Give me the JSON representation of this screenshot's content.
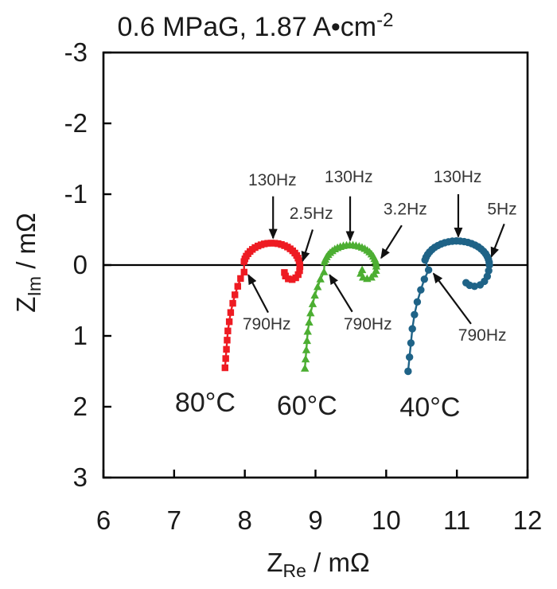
{
  "title": {
    "text": "0.6 MPaG, 1.87 A•cm",
    "sup": "-2"
  },
  "chart_data": {
    "type": "scatter",
    "title": "0.6 MPaG, 1.87 A•cm^-2",
    "xlabel": "Z_Re / mΩ",
    "ylabel": "Z_Im / mΩ",
    "xlim": [
      6,
      12
    ],
    "ylim": [
      -3,
      3
    ],
    "grid": false,
    "x_axis": {
      "label_main": "Z",
      "label_sub": "Re",
      "label_rest": " / mΩ",
      "min": 6,
      "max": 12,
      "ticks": [
        "6",
        "7",
        "8",
        "9",
        "10",
        "11",
        "12"
      ],
      "tick_values": [
        6,
        7,
        8,
        9,
        10,
        11,
        12
      ]
    },
    "y_axis": {
      "label_main": "Z",
      "label_sub": "Im",
      "label_rest": " / mΩ",
      "min": -3,
      "max": 3,
      "ticks": [
        "-3",
        "-2",
        "-1",
        "0",
        "1",
        "2",
        "3"
      ],
      "tick_values": [
        -3,
        -2,
        -1,
        0,
        1,
        2,
        3
      ],
      "negative_up": true
    },
    "zero_line_y": 0,
    "series": [
      {
        "name": "80°C",
        "marker": "square",
        "color": "#ee1b22",
        "points": [
          [
            7.72,
            1.45
          ],
          [
            7.73,
            1.32
          ],
          [
            7.74,
            1.19
          ],
          [
            7.75,
            1.06
          ],
          [
            7.76,
            0.93
          ],
          [
            7.78,
            0.8
          ],
          [
            7.8,
            0.67
          ],
          [
            7.83,
            0.54
          ],
          [
            7.86,
            0.42
          ],
          [
            7.9,
            0.3
          ],
          [
            7.94,
            0.19
          ],
          [
            7.99,
            0.1
          ],
          [
            7.989,
            -0.049
          ],
          [
            8.002,
            -0.087
          ],
          [
            8.02,
            -0.125
          ],
          [
            8.045,
            -0.16
          ],
          [
            8.074,
            -0.192
          ],
          [
            8.107,
            -0.221
          ],
          [
            8.145,
            -0.247
          ],
          [
            8.186,
            -0.269
          ],
          [
            8.23,
            -0.286
          ],
          [
            8.276,
            -0.299
          ],
          [
            8.324,
            -0.307
          ],
          [
            8.373,
            -0.31
          ],
          [
            8.422,
            -0.308
          ],
          [
            8.47,
            -0.302
          ],
          [
            8.517,
            -0.29
          ],
          [
            8.562,
            -0.274
          ],
          [
            8.604,
            -0.254
          ],
          [
            8.642,
            -0.229
          ],
          [
            8.677,
            -0.201
          ],
          [
            8.708,
            -0.169
          ],
          [
            8.733,
            -0.135
          ],
          [
            8.753,
            -0.098
          ],
          [
            8.768,
            -0.06
          ],
          [
            8.777,
            -0.02
          ],
          [
            8.78,
            0.02
          ],
          [
            8.775,
            0.08
          ],
          [
            8.755,
            0.135
          ],
          [
            8.72,
            0.18
          ],
          [
            8.67,
            0.205
          ],
          [
            8.615,
            0.195
          ],
          [
            8.575,
            0.155
          ],
          [
            8.56,
            0.105
          ]
        ]
      },
      {
        "name": "60°C",
        "marker": "triangle",
        "color": "#4cae32",
        "points": [
          [
            8.85,
            1.46
          ],
          [
            8.86,
            1.33
          ],
          [
            8.87,
            1.2
          ],
          [
            8.88,
            1.07
          ],
          [
            8.89,
            0.94
          ],
          [
            8.91,
            0.81
          ],
          [
            8.93,
            0.68
          ],
          [
            8.96,
            0.55
          ],
          [
            8.99,
            0.43
          ],
          [
            9.03,
            0.31
          ],
          [
            9.07,
            0.2
          ],
          [
            9.12,
            0.1
          ],
          [
            9.128,
            -0.042
          ],
          [
            9.14,
            -0.078
          ],
          [
            9.157,
            -0.112
          ],
          [
            9.18,
            -0.143
          ],
          [
            9.207,
            -0.173
          ],
          [
            9.238,
            -0.199
          ],
          [
            9.273,
            -0.223
          ],
          [
            9.311,
            -0.242
          ],
          [
            9.351,
            -0.258
          ],
          [
            9.394,
            -0.27
          ],
          [
            9.439,
            -0.277
          ],
          [
            9.484,
            -0.28
          ],
          [
            9.529,
            -0.278
          ],
          [
            9.573,
            -0.272
          ],
          [
            9.617,
            -0.262
          ],
          [
            9.658,
            -0.247
          ],
          [
            9.697,
            -0.229
          ],
          [
            9.733,
            -0.206
          ],
          [
            9.765,
            -0.181
          ],
          [
            9.793,
            -0.152
          ],
          [
            9.817,
            -0.121
          ],
          [
            9.835,
            -0.088
          ],
          [
            9.849,
            -0.053
          ],
          [
            9.857,
            -0.017
          ],
          [
            9.86,
            0.02
          ],
          [
            9.855,
            0.08
          ],
          [
            9.832,
            0.13
          ],
          [
            9.79,
            0.175
          ],
          [
            9.73,
            0.195
          ],
          [
            9.672,
            0.175
          ],
          [
            9.64,
            0.12
          ],
          [
            9.66,
            0.07
          ]
        ]
      },
      {
        "name": "40°C",
        "marker": "circle",
        "color": "#1f6387",
        "points": [
          [
            10.31,
            1.5
          ],
          [
            10.33,
            1.3
          ],
          [
            10.35,
            1.1
          ],
          [
            10.37,
            0.9
          ],
          [
            10.4,
            0.7
          ],
          [
            10.44,
            0.52
          ],
          [
            10.49,
            0.35
          ],
          [
            10.54,
            0.2
          ],
          [
            10.6,
            0.07
          ],
          [
            10.55,
            -0.071
          ],
          [
            10.565,
            -0.111
          ],
          [
            10.587,
            -0.149
          ],
          [
            10.614,
            -0.185
          ],
          [
            10.648,
            -0.219
          ],
          [
            10.686,
            -0.249
          ],
          [
            10.73,
            -0.275
          ],
          [
            10.777,
            -0.297
          ],
          [
            10.828,
            -0.315
          ],
          [
            10.881,
            -0.328
          ],
          [
            10.936,
            -0.337
          ],
          [
            10.992,
            -0.34
          ],
          [
            11.048,
            -0.338
          ],
          [
            11.103,
            -0.331
          ],
          [
            11.157,
            -0.319
          ],
          [
            11.209,
            -0.303
          ],
          [
            11.257,
            -0.282
          ],
          [
            11.302,
            -0.257
          ],
          [
            11.342,
            -0.227
          ],
          [
            11.377,
            -0.195
          ],
          [
            11.406,
            -0.16
          ],
          [
            11.429,
            -0.122
          ],
          [
            11.446,
            -0.082
          ],
          [
            11.457,
            -0.041
          ],
          [
            11.46,
            0.0
          ],
          [
            11.45,
            0.08
          ],
          [
            11.43,
            0.16
          ],
          [
            11.39,
            0.23
          ],
          [
            11.33,
            0.28
          ],
          [
            11.25,
            0.3
          ],
          [
            11.18,
            0.285
          ],
          [
            11.13,
            0.25
          ]
        ]
      }
    ],
    "temp_labels": [
      {
        "text": "80°C",
        "x": 7.44,
        "y": 1.93
      },
      {
        "text": "60°C",
        "x": 8.88,
        "y": 1.98
      },
      {
        "text": "40°C",
        "x": 10.62,
        "y": 2.0
      }
    ],
    "annotations": [
      {
        "text": "130Hz",
        "series": "80°C",
        "lx": 8.39,
        "ly": -1.2,
        "tail": [
          8.4,
          -0.97
        ],
        "tip": [
          8.4,
          -0.38
        ]
      },
      {
        "text": "2.5Hz",
        "series": "80°C",
        "lx": 8.94,
        "ly": -0.73,
        "tail": [
          8.96,
          -0.5
        ],
        "tip": [
          8.82,
          -0.06
        ]
      },
      {
        "text": "130Hz",
        "series": "60°C",
        "lx": 9.47,
        "ly": -1.25,
        "tail": [
          9.49,
          -0.97
        ],
        "tip": [
          9.49,
          -0.35
        ]
      },
      {
        "text": "3.2Hz",
        "series": "60°C",
        "lx": 10.27,
        "ly": -0.79,
        "tail": [
          10.22,
          -0.56
        ],
        "tip": [
          9.93,
          -0.1
        ]
      },
      {
        "text": "130Hz",
        "series": "40°C",
        "lx": 11.01,
        "ly": -1.25,
        "tail": [
          11.02,
          -1.0
        ],
        "tip": [
          11.02,
          -0.4
        ]
      },
      {
        "text": "5Hz",
        "series": "40°C",
        "lx": 11.64,
        "ly": -0.79,
        "tail": [
          11.67,
          -0.58
        ],
        "tip": [
          11.49,
          -0.12
        ]
      },
      {
        "text": "790Hz",
        "series": "80°C",
        "lx": 8.31,
        "ly": 0.83,
        "tail": [
          8.33,
          0.67
        ],
        "tip": [
          8.05,
          0.14
        ]
      },
      {
        "text": "790Hz",
        "series": "60°C",
        "lx": 9.74,
        "ly": 0.83,
        "tail": [
          9.52,
          0.66
        ],
        "tip": [
          9.2,
          0.14
        ]
      },
      {
        "text": "790Hz",
        "series": "40°C",
        "lx": 11.36,
        "ly": 0.99,
        "tail": [
          11.2,
          0.83
        ],
        "tip": [
          10.67,
          0.12
        ]
      }
    ],
    "colors": {
      "axis": "#000000",
      "text": "#1a1a1a",
      "annotation_text": "#363636",
      "arrow": "#111111"
    }
  }
}
